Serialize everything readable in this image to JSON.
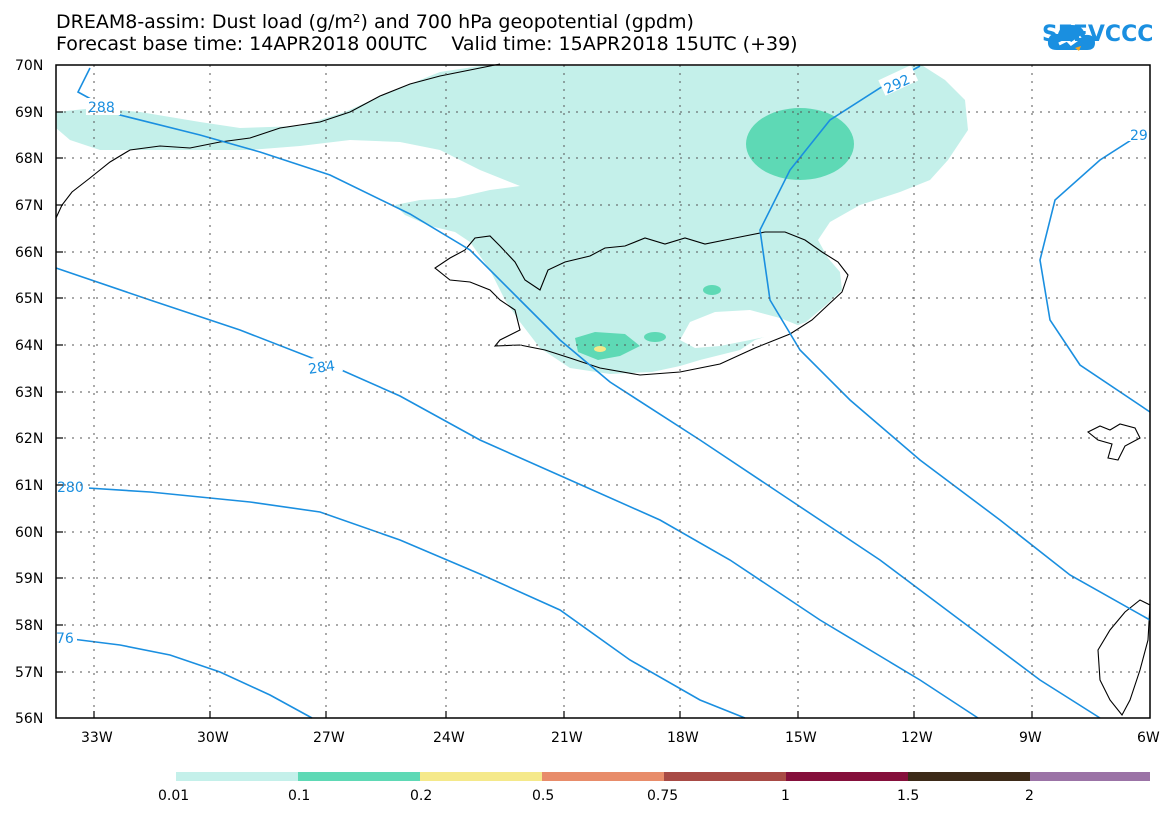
{
  "header": {
    "title_line1": "DREAM8-assim: Dust load (g/m²) and 700 hPa geopotential (gpdm)",
    "title_line2": "Forecast base time: 14APR2018 00UTC    Valid time: 15APR2018 15UTC (+39)"
  },
  "logo": {
    "text": "SEEVCCC",
    "icon": "cloud-icon",
    "color": "#1a8fe0"
  },
  "map": {
    "lat_labels": [
      "70N",
      "69N",
      "68N",
      "67N",
      "66N",
      "65N",
      "64N",
      "63N",
      "62N",
      "61N",
      "60N",
      "59N",
      "58N",
      "57N",
      "56N"
    ],
    "lon_labels": [
      "33W",
      "30W",
      "27W",
      "24W",
      "21W",
      "18W",
      "15W",
      "12W",
      "9W",
      "6W"
    ],
    "contour_labels": [
      "288",
      "292",
      "29",
      "284",
      "280",
      "76"
    ],
    "contour_color": "#1a8fe0"
  },
  "legend": {
    "colors": [
      "#c4f0ea",
      "#5ed9b5",
      "#f5e98a",
      "#e88c6a",
      "#a84a45",
      "#850f3b",
      "#3d2a18",
      "#9b73a6"
    ],
    "labels": [
      "0.01",
      "0.1",
      "0.2",
      "0.5",
      "0.75",
      "1",
      "1.5",
      "2"
    ]
  }
}
